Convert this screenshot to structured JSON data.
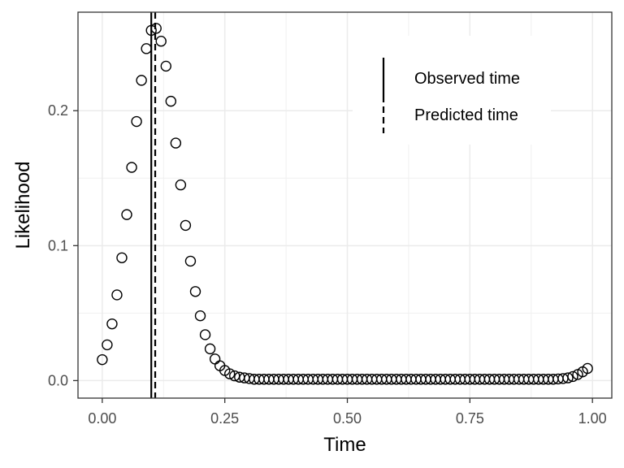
{
  "chart_data": {
    "type": "scatter",
    "xlabel": "Time",
    "ylabel": "Likelihood",
    "xlim": [
      -0.0495,
      1.0395
    ],
    "ylim": [
      -0.013,
      0.273
    ],
    "x_ticks": [
      0.0,
      0.25,
      0.5,
      0.75,
      1.0
    ],
    "x_tick_labels": [
      "0.00",
      "0.25",
      "0.50",
      "0.75",
      "1.00"
    ],
    "y_ticks": [
      0.0,
      0.1,
      0.2
    ],
    "y_tick_labels": [
      "0.0",
      "0.1",
      "0.2"
    ],
    "grid": true,
    "legend_position": "top-right",
    "series": [
      {
        "marker": "open-circle",
        "color": "#000000",
        "x": [
          0.0,
          0.01,
          0.02,
          0.03,
          0.04,
          0.05,
          0.06,
          0.07,
          0.08,
          0.09,
          0.1,
          0.11,
          0.12,
          0.13,
          0.14,
          0.15,
          0.16,
          0.17,
          0.18,
          0.19,
          0.2,
          0.21,
          0.22,
          0.23,
          0.24,
          0.25,
          0.26,
          0.27,
          0.28,
          0.29,
          0.3,
          0.31,
          0.32,
          0.33,
          0.34,
          0.35,
          0.36,
          0.37,
          0.38,
          0.39,
          0.4,
          0.41,
          0.42,
          0.43,
          0.44,
          0.45,
          0.46,
          0.47,
          0.48,
          0.49,
          0.5,
          0.51,
          0.52,
          0.53,
          0.54,
          0.55,
          0.56,
          0.57,
          0.58,
          0.59,
          0.6,
          0.61,
          0.62,
          0.63,
          0.64,
          0.65,
          0.66,
          0.67,
          0.68,
          0.69,
          0.7,
          0.71,
          0.72,
          0.73,
          0.74,
          0.75,
          0.76,
          0.77,
          0.78,
          0.79,
          0.8,
          0.81,
          0.82,
          0.83,
          0.84,
          0.85,
          0.86,
          0.87,
          0.88,
          0.89,
          0.9,
          0.91,
          0.92,
          0.93,
          0.94,
          0.95,
          0.96,
          0.97,
          0.98,
          0.99
        ],
        "y": [
          0.0155,
          0.0265,
          0.042,
          0.0635,
          0.091,
          0.123,
          0.158,
          0.192,
          0.2225,
          0.246,
          0.2595,
          0.261,
          0.2515,
          0.233,
          0.207,
          0.176,
          0.145,
          0.115,
          0.0885,
          0.066,
          0.048,
          0.034,
          0.0235,
          0.016,
          0.011,
          0.0075,
          0.005,
          0.0035,
          0.0025,
          0.002,
          0.0015,
          0.001,
          0.001,
          0.001,
          0.001,
          0.001,
          0.001,
          0.001,
          0.001,
          0.001,
          0.001,
          0.001,
          0.001,
          0.001,
          0.001,
          0.001,
          0.001,
          0.001,
          0.001,
          0.001,
          0.001,
          0.001,
          0.001,
          0.001,
          0.001,
          0.001,
          0.001,
          0.001,
          0.001,
          0.001,
          0.001,
          0.001,
          0.001,
          0.001,
          0.001,
          0.001,
          0.001,
          0.001,
          0.001,
          0.001,
          0.001,
          0.001,
          0.001,
          0.001,
          0.001,
          0.001,
          0.001,
          0.001,
          0.001,
          0.001,
          0.001,
          0.001,
          0.001,
          0.001,
          0.001,
          0.001,
          0.001,
          0.001,
          0.001,
          0.001,
          0.001,
          0.001,
          0.001,
          0.0012,
          0.0015,
          0.002,
          0.003,
          0.0045,
          0.0065,
          0.009
        ]
      }
    ],
    "vlines": [
      {
        "name": "Observed time",
        "x": 0.1,
        "style": "solid",
        "color": "#000000"
      },
      {
        "name": "Predicted time",
        "x": 0.108,
        "style": "dashed",
        "color": "#000000"
      }
    ]
  }
}
